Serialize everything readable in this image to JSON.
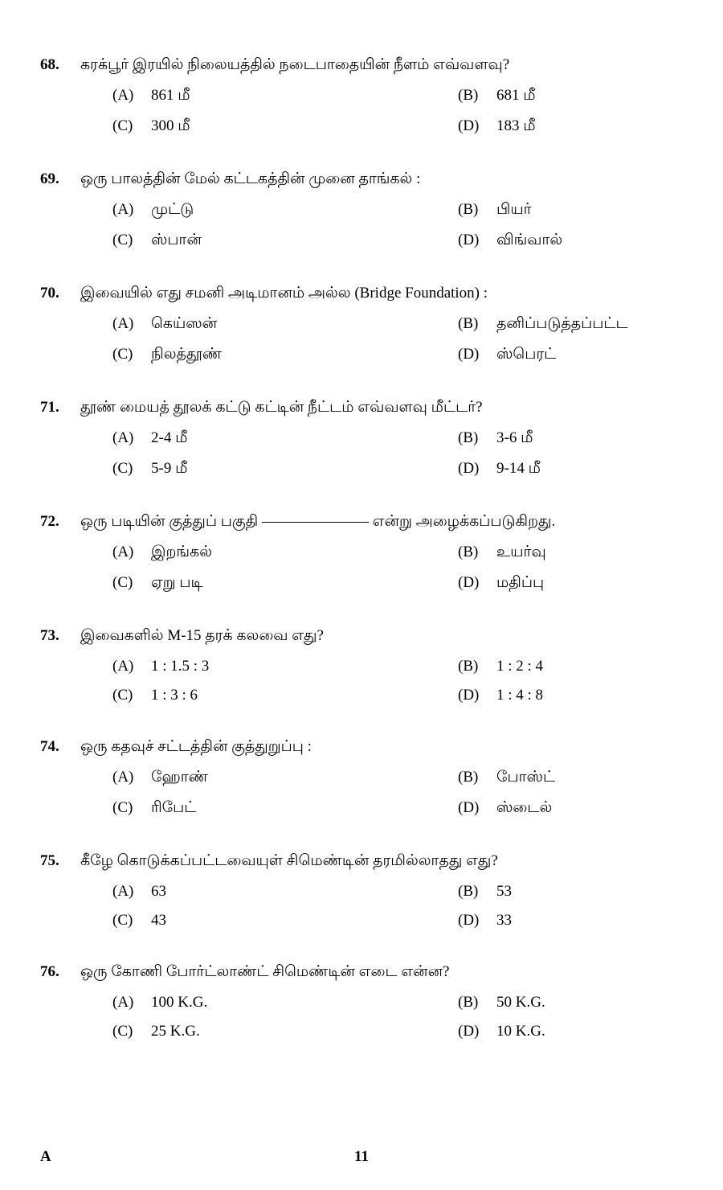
{
  "questions": [
    {
      "num": "68.",
      "text": "கரக்பூர் இரயில் நிலையத்தில் நடைபாதையின் நீளம் எவ்வளவு?",
      "options": {
        "A": "861 மீ",
        "B": "681 மீ",
        "C": "300 மீ",
        "D": "183 மீ"
      }
    },
    {
      "num": "69.",
      "text": "ஒரு பாலத்தின் மேல் கட்டகத்தின் முனை தாங்கல் :",
      "options": {
        "A": "முட்டு",
        "B": "பியர்",
        "C": "ஸ்பான்",
        "D": "விங்வால்"
      }
    },
    {
      "num": "70.",
      "text": "இவையில் எது சமனி அடிமானம் அல்ல (Bridge Foundation) :",
      "options": {
        "A": "கெய்ஸன்",
        "B": "தனிப்படுத்தப்பட்ட",
        "C": "நிலத்தூண்",
        "D": "ஸ்பெரட்"
      }
    },
    {
      "num": "71.",
      "text": "தூண் மையத் தூலக் கட்டு கட்டின் நீட்டம் எவ்வளவு மீட்டர்?",
      "options": {
        "A": "2-4 மீ",
        "B": "3-6 மீ",
        "C": "5-9 மீ",
        "D": "9-14 மீ"
      }
    },
    {
      "num": "72.",
      "text": "ஒரு படியின் குத்துப் பகுதி ――――――― என்று அழைக்கப்படுகிறது.",
      "options": {
        "A": "இறங்கல்",
        "B": "உயர்வு",
        "C": "ஏறு படி",
        "D": "மதிப்பு"
      }
    },
    {
      "num": "73.",
      "text": "இவைகளில் M-15 தரக் கலவை எது?",
      "options": {
        "A": "1 : 1.5 : 3",
        "B": "1 : 2 : 4",
        "C": "1 : 3 : 6",
        "D": "1 : 4 : 8"
      }
    },
    {
      "num": "74.",
      "text": "ஒரு கதவுச் சட்டத்தின் குத்துறுப்பு :",
      "options": {
        "A": "ஹோண்",
        "B": "போஸ்ட்",
        "C": "ரிபேட்",
        "D": "ஸ்டைல்"
      }
    },
    {
      "num": "75.",
      "text": "கீழே கொடுக்கப்பட்டவையுள் சிமெண்டின் தரமில்லாதது எது?",
      "options": {
        "A": "63",
        "B": "53",
        "C": "43",
        "D": "33"
      }
    },
    {
      "num": "76.",
      "text": "ஒரு கோணி போர்ட்லாண்ட் சிமெண்டின் எடை என்ன?",
      "options": {
        "A": "100 K.G.",
        "B": "50 K.G.",
        "C": "25 K.G.",
        "D": "10 K.G."
      }
    }
  ],
  "footer": {
    "left": "A",
    "page": "11"
  }
}
